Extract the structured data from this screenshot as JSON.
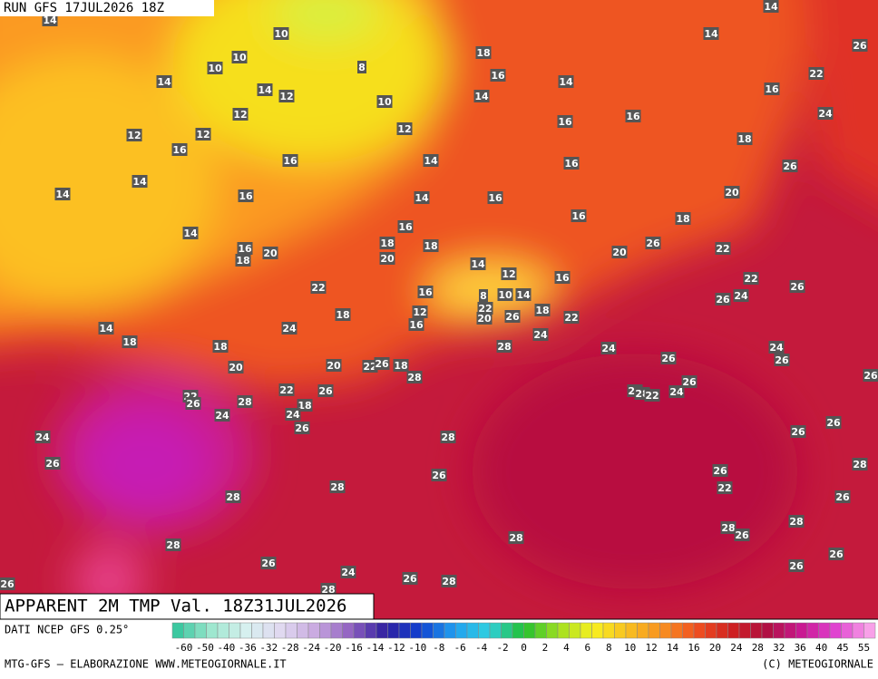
{
  "header": {
    "run": "RUN GFS 17JUL2026 18Z"
  },
  "footer": {
    "title": "APPARENT 2M TMP Val. 18Z31JUL2026",
    "source": "DATI NCEP GFS 0.25°",
    "credit": "MTG-GFS — ELABORAZIONE WWW.METEOGIORNALE.IT",
    "copyright": "(C) METEOGIORNALE"
  },
  "legend": {
    "labels": [
      -60,
      -50,
      -40,
      -36,
      -32,
      -28,
      -24,
      -20,
      -16,
      -14,
      -12,
      -10,
      -8,
      -6,
      -4,
      -2,
      0,
      2,
      4,
      6,
      8,
      10,
      12,
      14,
      16,
      20,
      24,
      28,
      32,
      36,
      40,
      45,
      55
    ]
  },
  "map": {
    "labels": [
      14,
      10,
      14,
      26,
      18,
      14,
      10,
      10,
      8,
      16,
      22,
      14,
      14,
      12,
      10,
      14,
      14,
      16,
      24,
      12,
      16,
      16,
      12,
      12,
      12,
      16,
      18,
      16,
      14,
      16,
      26,
      14,
      14,
      16,
      14,
      16,
      20,
      16,
      18,
      14,
      16,
      26,
      18,
      18,
      16,
      18,
      20,
      20,
      20,
      22,
      14,
      12,
      16,
      22,
      22,
      16,
      8,
      10,
      14,
      26,
      24,
      26,
      12,
      22,
      18,
      26,
      18,
      22,
      20,
      16,
      24,
      14,
      18,
      28,
      24,
      24,
      18,
      24,
      26,
      26,
      20,
      20,
      22,
      26,
      18,
      28,
      26,
      26,
      22,
      26,
      28,
      22,
      26,
      18,
      22,
      28,
      22,
      24,
      24,
      24,
      26,
      26,
      26,
      24,
      28,
      26,
      28,
      26,
      26,
      28,
      22,
      28,
      26,
      28,
      28,
      26,
      28,
      28,
      26,
      26,
      26,
      24,
      26,
      28,
      26,
      28
    ]
  }
}
